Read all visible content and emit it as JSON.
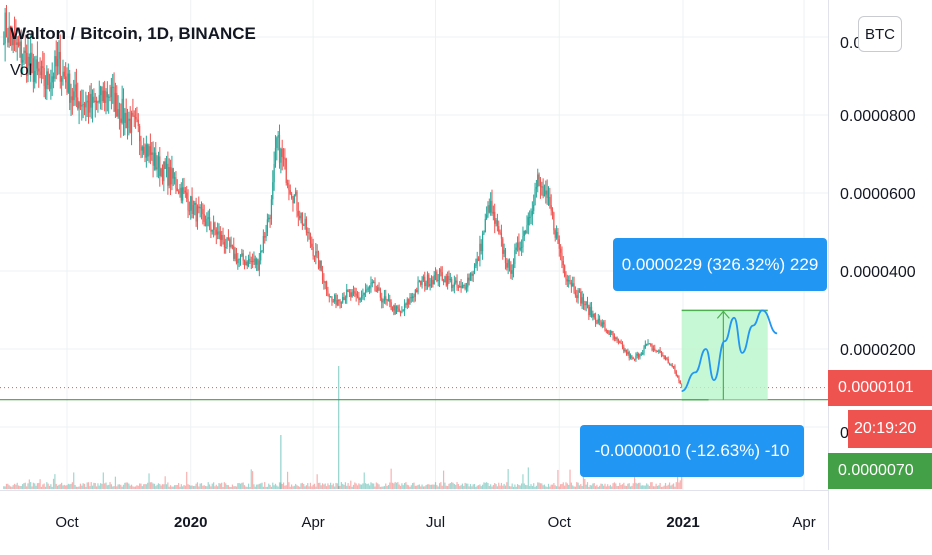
{
  "header": {
    "title": "Walton / Bitcoin, 1D, BINANCE",
    "volume_label": "Vol"
  },
  "currency_button": "BTC",
  "chart_data": {
    "type": "candlestick",
    "title": "Walton / Bitcoin, 1D, BINANCE",
    "price_axis": {
      "ticks": [
        8e-05,
        6e-05,
        4e-05,
        2e-05
      ],
      "tick_labels": [
        "0.0000800",
        "0.0000600",
        "0.0000400",
        "0.0000200"
      ],
      "partial_label": "0.0000",
      "range": [
        3.5e-06,
        0.000109
      ]
    },
    "time_axis": {
      "ticks": [
        "Oct",
        "2020",
        "Apr",
        "Jul",
        "Oct",
        "2021",
        "Apr"
      ],
      "bold_ticks": [
        "2020",
        "2021"
      ]
    },
    "price_path": [
      [
        "2019-08-15",
        0.000103
      ],
      [
        "2019-08-25",
        9.7e-05
      ],
      [
        "2019-09-05",
        9.2e-05
      ],
      [
        "2019-09-15",
        8.8e-05
      ],
      [
        "2019-09-25",
        9.3e-05
      ],
      [
        "2019-10-05",
        8.5e-05
      ],
      [
        "2019-10-20",
        8.2e-05
      ],
      [
        "2019-11-01",
        8.6e-05
      ],
      [
        "2019-11-12",
        8e-05
      ],
      [
        "2019-11-22",
        7.6e-05
      ],
      [
        "2019-12-05",
        6.8e-05
      ],
      [
        "2019-12-20",
        6.3e-05
      ],
      [
        "2020-01-05",
        5.5e-05
      ],
      [
        "2020-01-20",
        5e-05
      ],
      [
        "2020-02-05",
        4.3e-05
      ],
      [
        "2020-02-20",
        4.2e-05
      ],
      [
        "2020-03-01",
        5.7e-05
      ],
      [
        "2020-03-05",
        7.3e-05
      ],
      [
        "2020-03-15",
        6.2e-05
      ],
      [
        "2020-03-25",
        5.2e-05
      ],
      [
        "2020-04-05",
        4.2e-05
      ],
      [
        "2020-04-15",
        3.2e-05
      ],
      [
        "2020-04-25",
        3.4e-05
      ],
      [
        "2020-05-05",
        3.3e-05
      ],
      [
        "2020-05-15",
        3.6e-05
      ],
      [
        "2020-05-25",
        3.2e-05
      ],
      [
        "2020-06-05",
        2.9e-05
      ],
      [
        "2020-06-20",
        3.7e-05
      ],
      [
        "2020-07-05",
        3.9e-05
      ],
      [
        "2020-07-20",
        3.5e-05
      ],
      [
        "2020-08-01",
        4.2e-05
      ],
      [
        "2020-08-10",
        5.7e-05
      ],
      [
        "2020-08-25",
        4e-05
      ],
      [
        "2020-09-05",
        5e-05
      ],
      [
        "2020-09-15",
        6.3e-05
      ],
      [
        "2020-09-25",
        5.5e-05
      ],
      [
        "2020-10-05",
        4e-05
      ],
      [
        "2020-10-15",
        3.4e-05
      ],
      [
        "2020-10-25",
        2.9e-05
      ],
      [
        "2020-11-10",
        2.3e-05
      ],
      [
        "2020-11-25",
        1.7e-05
      ],
      [
        "2020-12-05",
        2.1e-05
      ],
      [
        "2020-12-15",
        1.9e-05
      ],
      [
        "2020-12-25",
        1.5e-05
      ],
      [
        "2020-12-31",
        1.01e-05
      ]
    ],
    "volume_spikes": [
      "2020-03-08",
      "2020-04-20"
    ],
    "current_price": 1.01e-05,
    "current_price_label": "0.0000101",
    "countdown": "20:19:20",
    "support_price": 7e-06,
    "support_label": "0.0000070",
    "target_price": 2.99e-05,
    "projection": {
      "from_date": "2020-12-31",
      "to_date": "2021-03-05",
      "path": [
        [
          "2020-12-31",
          9.2e-06
        ],
        [
          "2021-01-10",
          1.4e-05
        ],
        [
          "2021-01-18",
          2e-05
        ],
        [
          "2021-01-24",
          1.2e-05
        ],
        [
          "2021-02-01",
          2.2e-05
        ],
        [
          "2021-02-08",
          2.8e-05
        ],
        [
          "2021-02-14",
          1.9e-05
        ],
        [
          "2021-02-22",
          2.6e-05
        ],
        [
          "2021-03-01",
          2.99e-05
        ],
        [
          "2021-03-12",
          2.4e-05
        ]
      ]
    },
    "gain_callout": "0.0000229 (326.32%) 229",
    "loss_callout": "-0.0000010 (-12.63%) -10",
    "colors": {
      "up": "#26a69a",
      "down": "#ef5350",
      "grid": "#eef0f3",
      "support_line": "#43a047",
      "current_price_tag": "#ef5350",
      "support_tag": "#43a047",
      "callout": "#2196f3",
      "target_zone": "#b9f6ca",
      "target_line": "#4caf50",
      "projection": "#2196f3"
    }
  }
}
